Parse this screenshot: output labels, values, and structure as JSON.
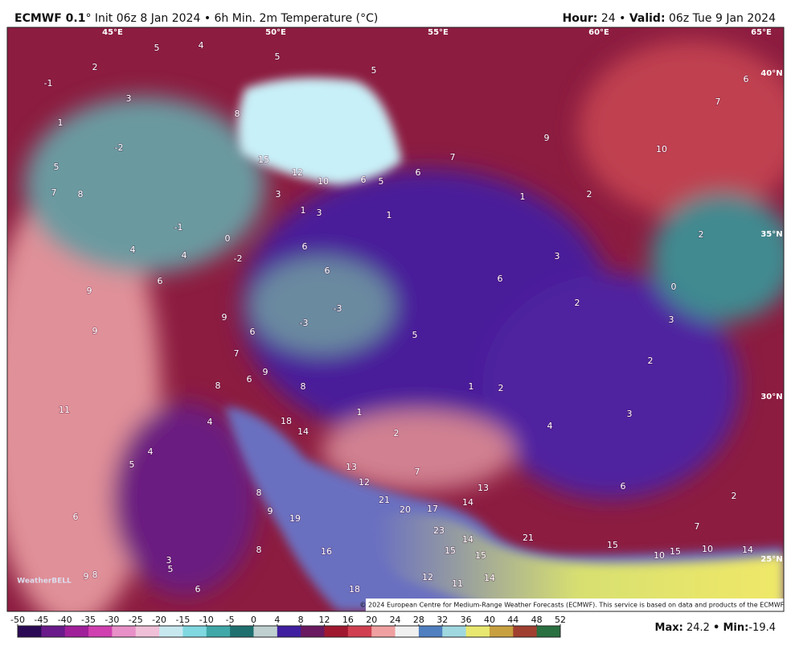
{
  "header": {
    "model": "ECMWF 0.1",
    "degree": "°",
    "init": "Init 06z 8 Jan 2024 • 6h Min. 2m Temperature (°C)",
    "hour_label": "Hour:",
    "hour": "24 •",
    "valid_label": "Valid:",
    "valid": "06z Tue 9 Jan 2024"
  },
  "map": {
    "lon_labels": [
      "45°E",
      "50°E",
      "55°E",
      "60°E",
      "65°E"
    ],
    "lat_labels": [
      "40°N",
      "35°N",
      "30°N",
      "25°N"
    ],
    "values": [
      5,
      4,
      5,
      5,
      2,
      -1,
      3,
      1,
      8,
      -2,
      5,
      7,
      8,
      15,
      12,
      10,
      6,
      5,
      6,
      7,
      9,
      10,
      7,
      6,
      3,
      1,
      3,
      1,
      1,
      2,
      -1,
      0,
      4,
      4,
      -2,
      6,
      6,
      6,
      6,
      3,
      2,
      0,
      2,
      3,
      2,
      9,
      9,
      9,
      6,
      -3,
      -3,
      5,
      7,
      6,
      9,
      8,
      8,
      1,
      2,
      1,
      3,
      4,
      11,
      4,
      18,
      14,
      2,
      4,
      5,
      13,
      7,
      12,
      13,
      6,
      8,
      21,
      20,
      17,
      14,
      2,
      6,
      9,
      19,
      23,
      21,
      7,
      14,
      15,
      8,
      16,
      15,
      15,
      10,
      15,
      10,
      14,
      3,
      5,
      9,
      8,
      12,
      11,
      14,
      6,
      18
    ],
    "logo": "WeatherBELL",
    "credit": "© 2024 European Centre for Medium-Range Weather Forecasts (ECMWF). This service is based on data and products of the ECMWF."
  },
  "colorbar": {
    "ticks": [
      -50,
      -45,
      -40,
      -35,
      -30,
      -25,
      -20,
      -15,
      -10,
      -5,
      0,
      4,
      8,
      12,
      16,
      20,
      24,
      28,
      32,
      36,
      40,
      44,
      48,
      52
    ],
    "colors": [
      "#2b0a55",
      "#6a1a8a",
      "#a0209a",
      "#d040b0",
      "#e890c8",
      "#f0c0d8",
      "#c8e8f0",
      "#80d8e0",
      "#40a8a8",
      "#207070",
      "#c0d0d0",
      "#4020a0",
      "#6a1a60",
      "#a01830",
      "#d04050",
      "#f0a0a0",
      "#f0f0f0",
      "#5080c0",
      "#a0d8e0",
      "#e8e870",
      "#c8a040",
      "#a04030",
      "#2a7040"
    ]
  },
  "footer": {
    "max_label": "Max:",
    "max": 24.2,
    "sep": "•",
    "min_label": "Min:",
    "min": -19.4
  }
}
